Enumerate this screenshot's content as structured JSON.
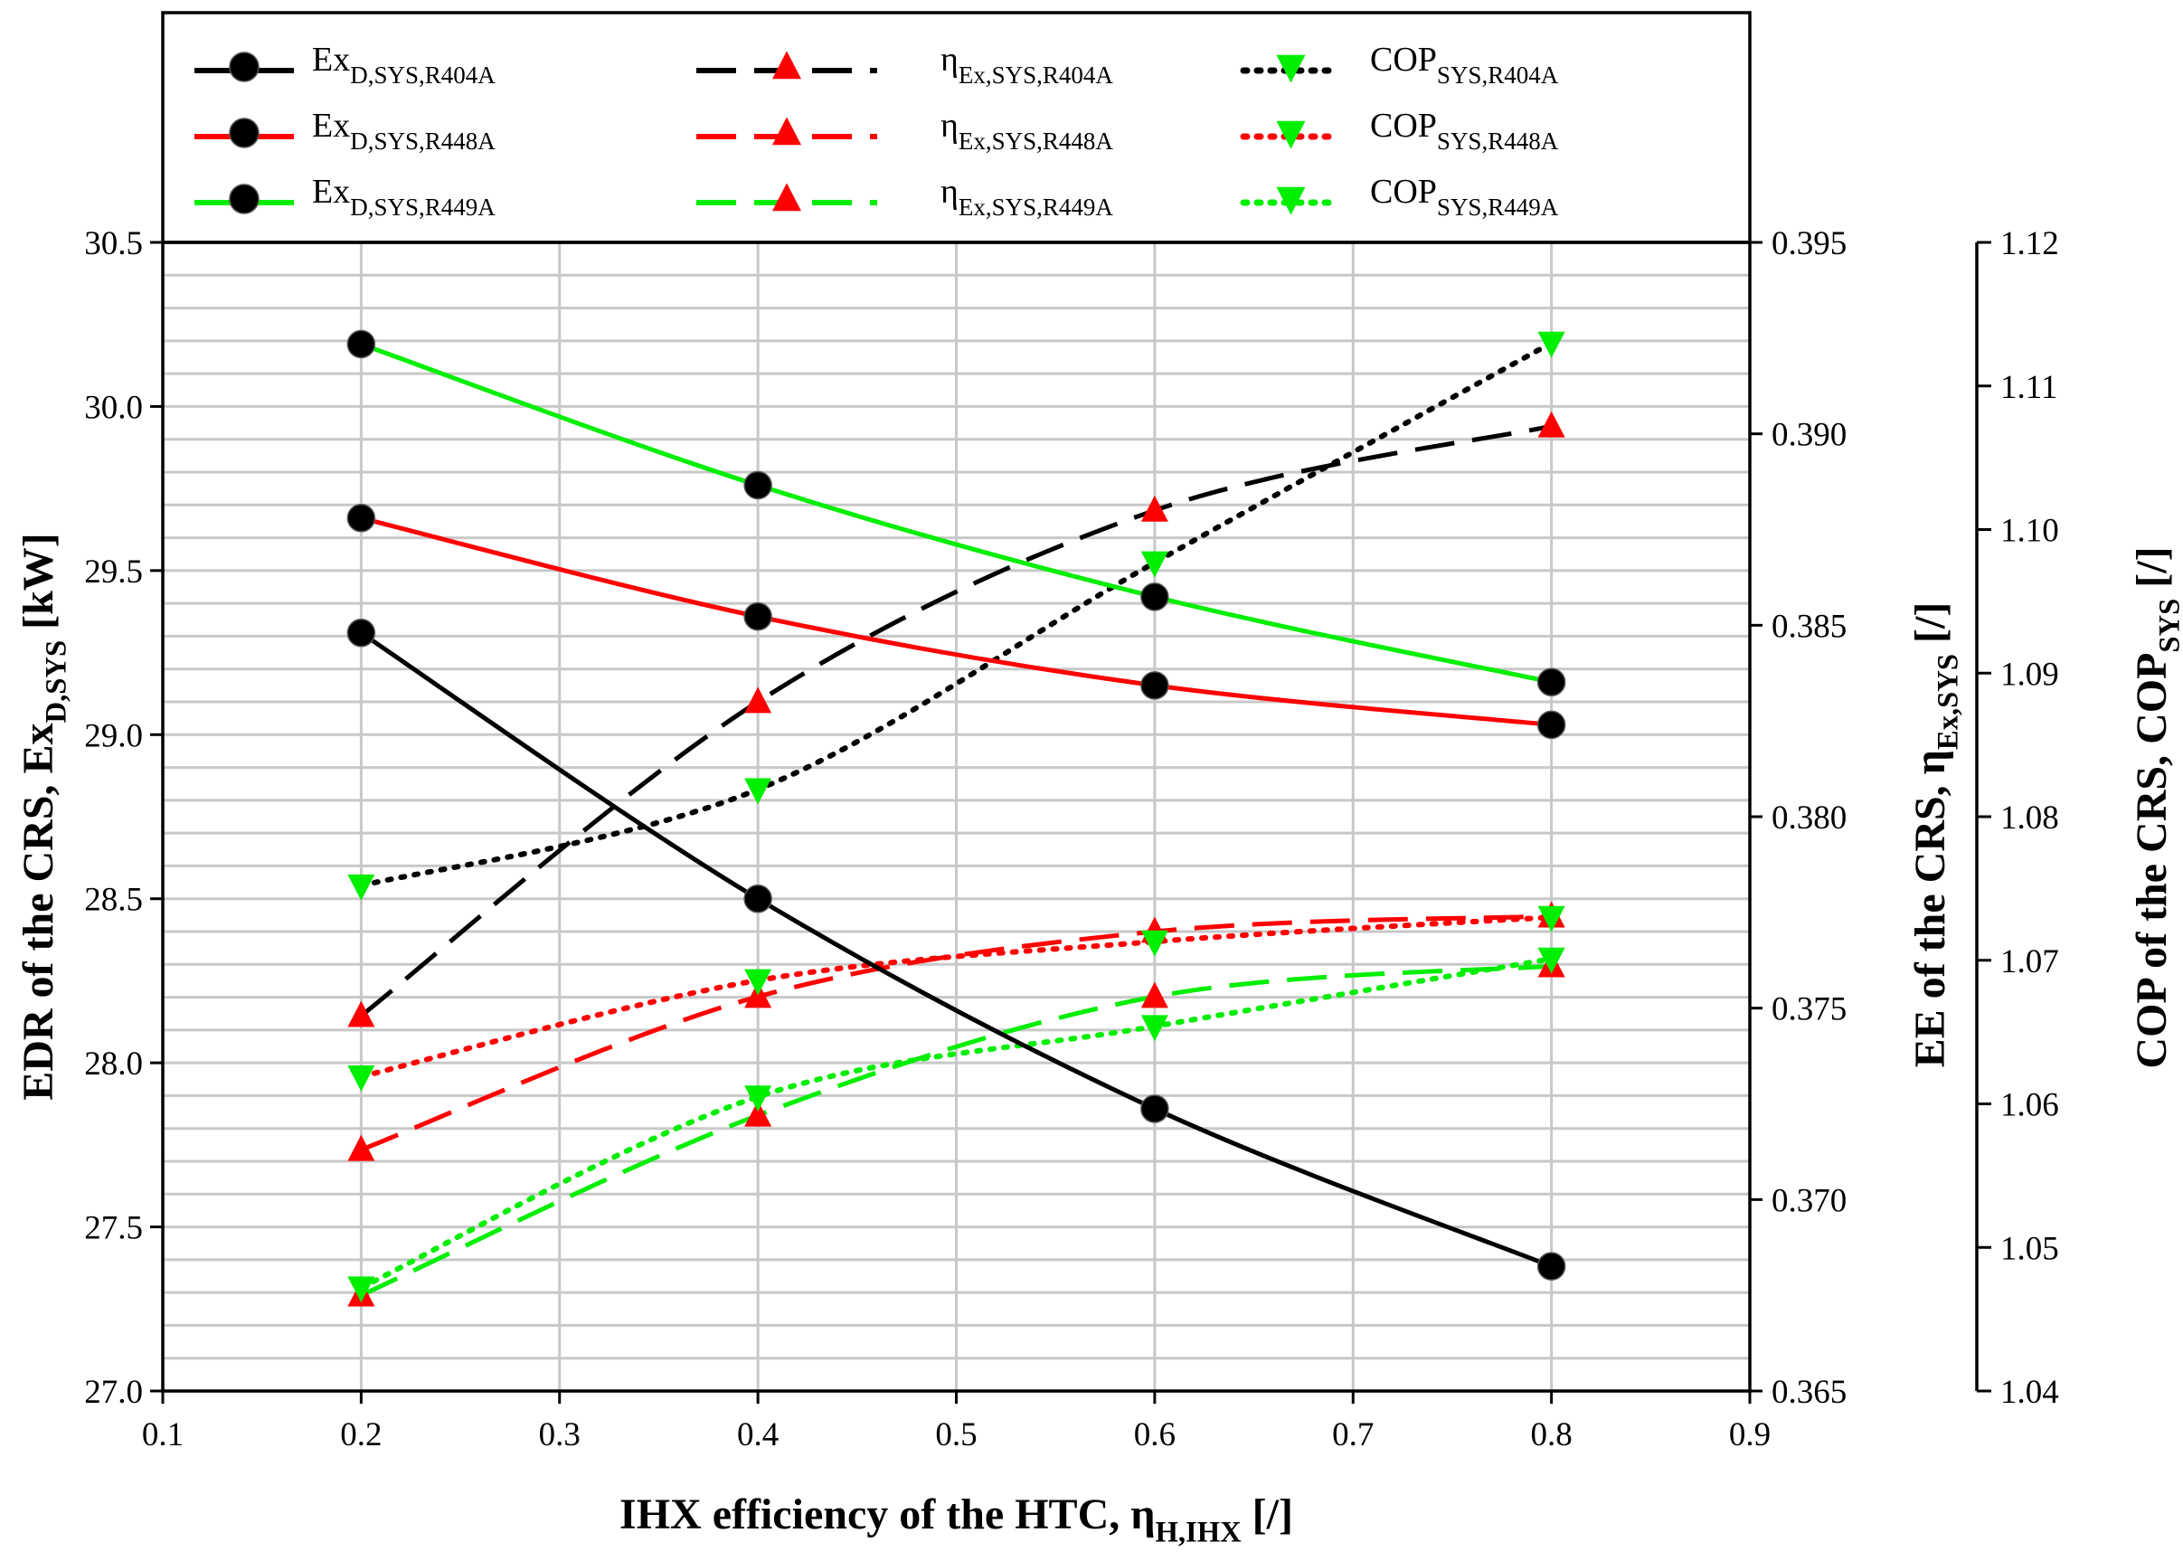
{
  "chart_data": {
    "type": "line",
    "x": [
      0.2,
      0.4,
      0.6,
      0.8
    ],
    "xlim": [
      0.1,
      0.9
    ],
    "xticks": [
      "0.1",
      "0.2",
      "0.3",
      "0.4",
      "0.5",
      "0.6",
      "0.7",
      "0.8",
      "0.9"
    ],
    "xlabel": {
      "main": "IHX efficiency of the HTC, η",
      "sub": "H,IHX",
      "unit": " [/]"
    },
    "axes": {
      "left": {
        "label": {
          "main": "EDR of the CRS, Ex",
          "sub": "D,SYS",
          "unit": " [kW]"
        },
        "lim": [
          27.0,
          30.5
        ],
        "ticks": [
          "27.0",
          "27.5",
          "28.0",
          "28.5",
          "29.0",
          "29.5",
          "30.0",
          "30.5"
        ]
      },
      "right1": {
        "label": {
          "main": "EE of the CRS, η",
          "sub": "Ex,SYS",
          "unit": " [/]"
        },
        "lim": [
          0.365,
          0.395
        ],
        "ticks": [
          "0.365",
          "0.370",
          "0.375",
          "0.380",
          "0.385",
          "0.390",
          "0.395"
        ]
      },
      "right2": {
        "label": {
          "main": "COP of the CRS, COP",
          "sub": "SYS",
          "unit": " [/]"
        },
        "lim": [
          1.04,
          1.12
        ],
        "ticks": [
          "1.04",
          "1.05",
          "1.06",
          "1.07",
          "1.08",
          "1.09",
          "1.10",
          "1.11",
          "1.12"
        ]
      }
    },
    "colors": {
      "R404A": "#000000",
      "R448A": "#ff0000",
      "R449A": "#00ee00",
      "triangle_up": "#ff0000",
      "triangle_down": "#00ee00",
      "circle": "#000000"
    },
    "series": [
      {
        "name": "Ex_D,SYS,R404A",
        "legend_main": "Ex",
        "legend_sub": "D,SYS,R404A",
        "axis": "left",
        "refrigerant": "R404A",
        "line": "solid",
        "marker": "circle",
        "values": [
          29.31,
          28.5,
          27.86,
          27.38
        ]
      },
      {
        "name": "Ex_D,SYS,R448A",
        "legend_main": "Ex",
        "legend_sub": "D,SYS,R448A",
        "axis": "left",
        "refrigerant": "R448A",
        "line": "solid",
        "marker": "circle",
        "values": [
          29.66,
          29.36,
          29.15,
          29.03
        ]
      },
      {
        "name": "Ex_D,SYS,R449A",
        "legend_main": "Ex",
        "legend_sub": "D,SYS,R449A",
        "axis": "left",
        "refrigerant": "R449A",
        "line": "solid",
        "marker": "circle",
        "values": [
          30.19,
          29.76,
          29.42,
          29.16
        ]
      },
      {
        "name": "eta_Ex,SYS,R404A",
        "legend_main": "η",
        "legend_sub": "Ex,SYS,R404A",
        "axis": "right1",
        "refrigerant": "R404A",
        "line": "dashed",
        "marker": "triangle-up",
        "values": [
          0.3748,
          0.383,
          0.388,
          0.3902
        ]
      },
      {
        "name": "eta_Ex,SYS,R448A",
        "legend_main": "η",
        "legend_sub": "Ex,SYS,R448A",
        "axis": "right1",
        "refrigerant": "R448A",
        "line": "dashed",
        "marker": "triangle-up",
        "values": [
          0.3713,
          0.3753,
          0.377,
          0.3774
        ]
      },
      {
        "name": "eta_Ex,SYS,R449A",
        "legend_main": "η",
        "legend_sub": "Ex,SYS,R449A",
        "axis": "right1",
        "refrigerant": "R449A",
        "line": "dashed",
        "marker": "triangle-up",
        "values": [
          0.3675,
          0.3722,
          0.3753,
          0.3761
        ]
      },
      {
        "name": "COP_SYS,R404A",
        "legend_main": "COP",
        "legend_sub": "SYS,R404A",
        "axis": "right2",
        "refrigerant": "R404A",
        "line": "dotted",
        "marker": "triangle-down",
        "values": [
          1.0752,
          1.0819,
          1.0977,
          1.113
        ]
      },
      {
        "name": "COP_SYS,R448A",
        "legend_main": "COP",
        "legend_sub": "SYS,R448A",
        "axis": "right2",
        "refrigerant": "R448A",
        "line": "dotted",
        "marker": "triangle-down",
        "values": [
          1.0619,
          1.0686,
          1.0713,
          1.073
        ]
      },
      {
        "name": "COP_SYS,R449A",
        "legend_main": "COP",
        "legend_sub": "SYS,R449A",
        "axis": "right2",
        "refrigerant": "R449A",
        "line": "dotted",
        "marker": "triangle-down",
        "values": [
          1.0472,
          1.0605,
          1.0654,
          1.0701
        ]
      }
    ],
    "legend_position": "top",
    "grid": true
  }
}
